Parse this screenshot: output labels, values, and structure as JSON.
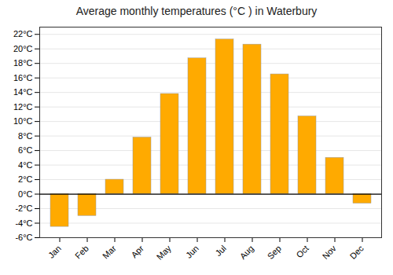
{
  "chart_data": {
    "type": "bar",
    "title": "Average monthly temperatures (°C ) in Waterbury",
    "categories": [
      "Jan",
      "Feb",
      "Mar",
      "Apr",
      "May",
      "Jun",
      "Jul",
      "Aug",
      "Sep",
      "Oct",
      "Nov",
      "Dec"
    ],
    "values": [
      -4.5,
      -3.0,
      2.0,
      7.8,
      13.8,
      18.7,
      21.3,
      20.6,
      16.5,
      10.7,
      5.0,
      -1.3
    ],
    "color": "#FFAA00",
    "ylim": [
      -6,
      23
    ],
    "yticks": [
      {
        "value": -6,
        "label": "-6°C"
      },
      {
        "value": -4,
        "label": "-4°C"
      },
      {
        "value": -2,
        "label": "-2°C"
      },
      {
        "value": 0,
        "label": "0°C"
      },
      {
        "value": 2,
        "label": "2°C"
      },
      {
        "value": 4,
        "label": "4°C"
      },
      {
        "value": 6,
        "label": "6°C"
      },
      {
        "value": 8,
        "label": "8°C"
      },
      {
        "value": 10,
        "label": "10°C"
      },
      {
        "value": 12,
        "label": "12°C"
      },
      {
        "value": 14,
        "label": "14°C"
      },
      {
        "value": 16,
        "label": "16°C"
      },
      {
        "value": 18,
        "label": "18°C"
      },
      {
        "value": 20,
        "label": "20°C"
      },
      {
        "value": 22,
        "label": "22°C"
      }
    ],
    "grid": true
  }
}
